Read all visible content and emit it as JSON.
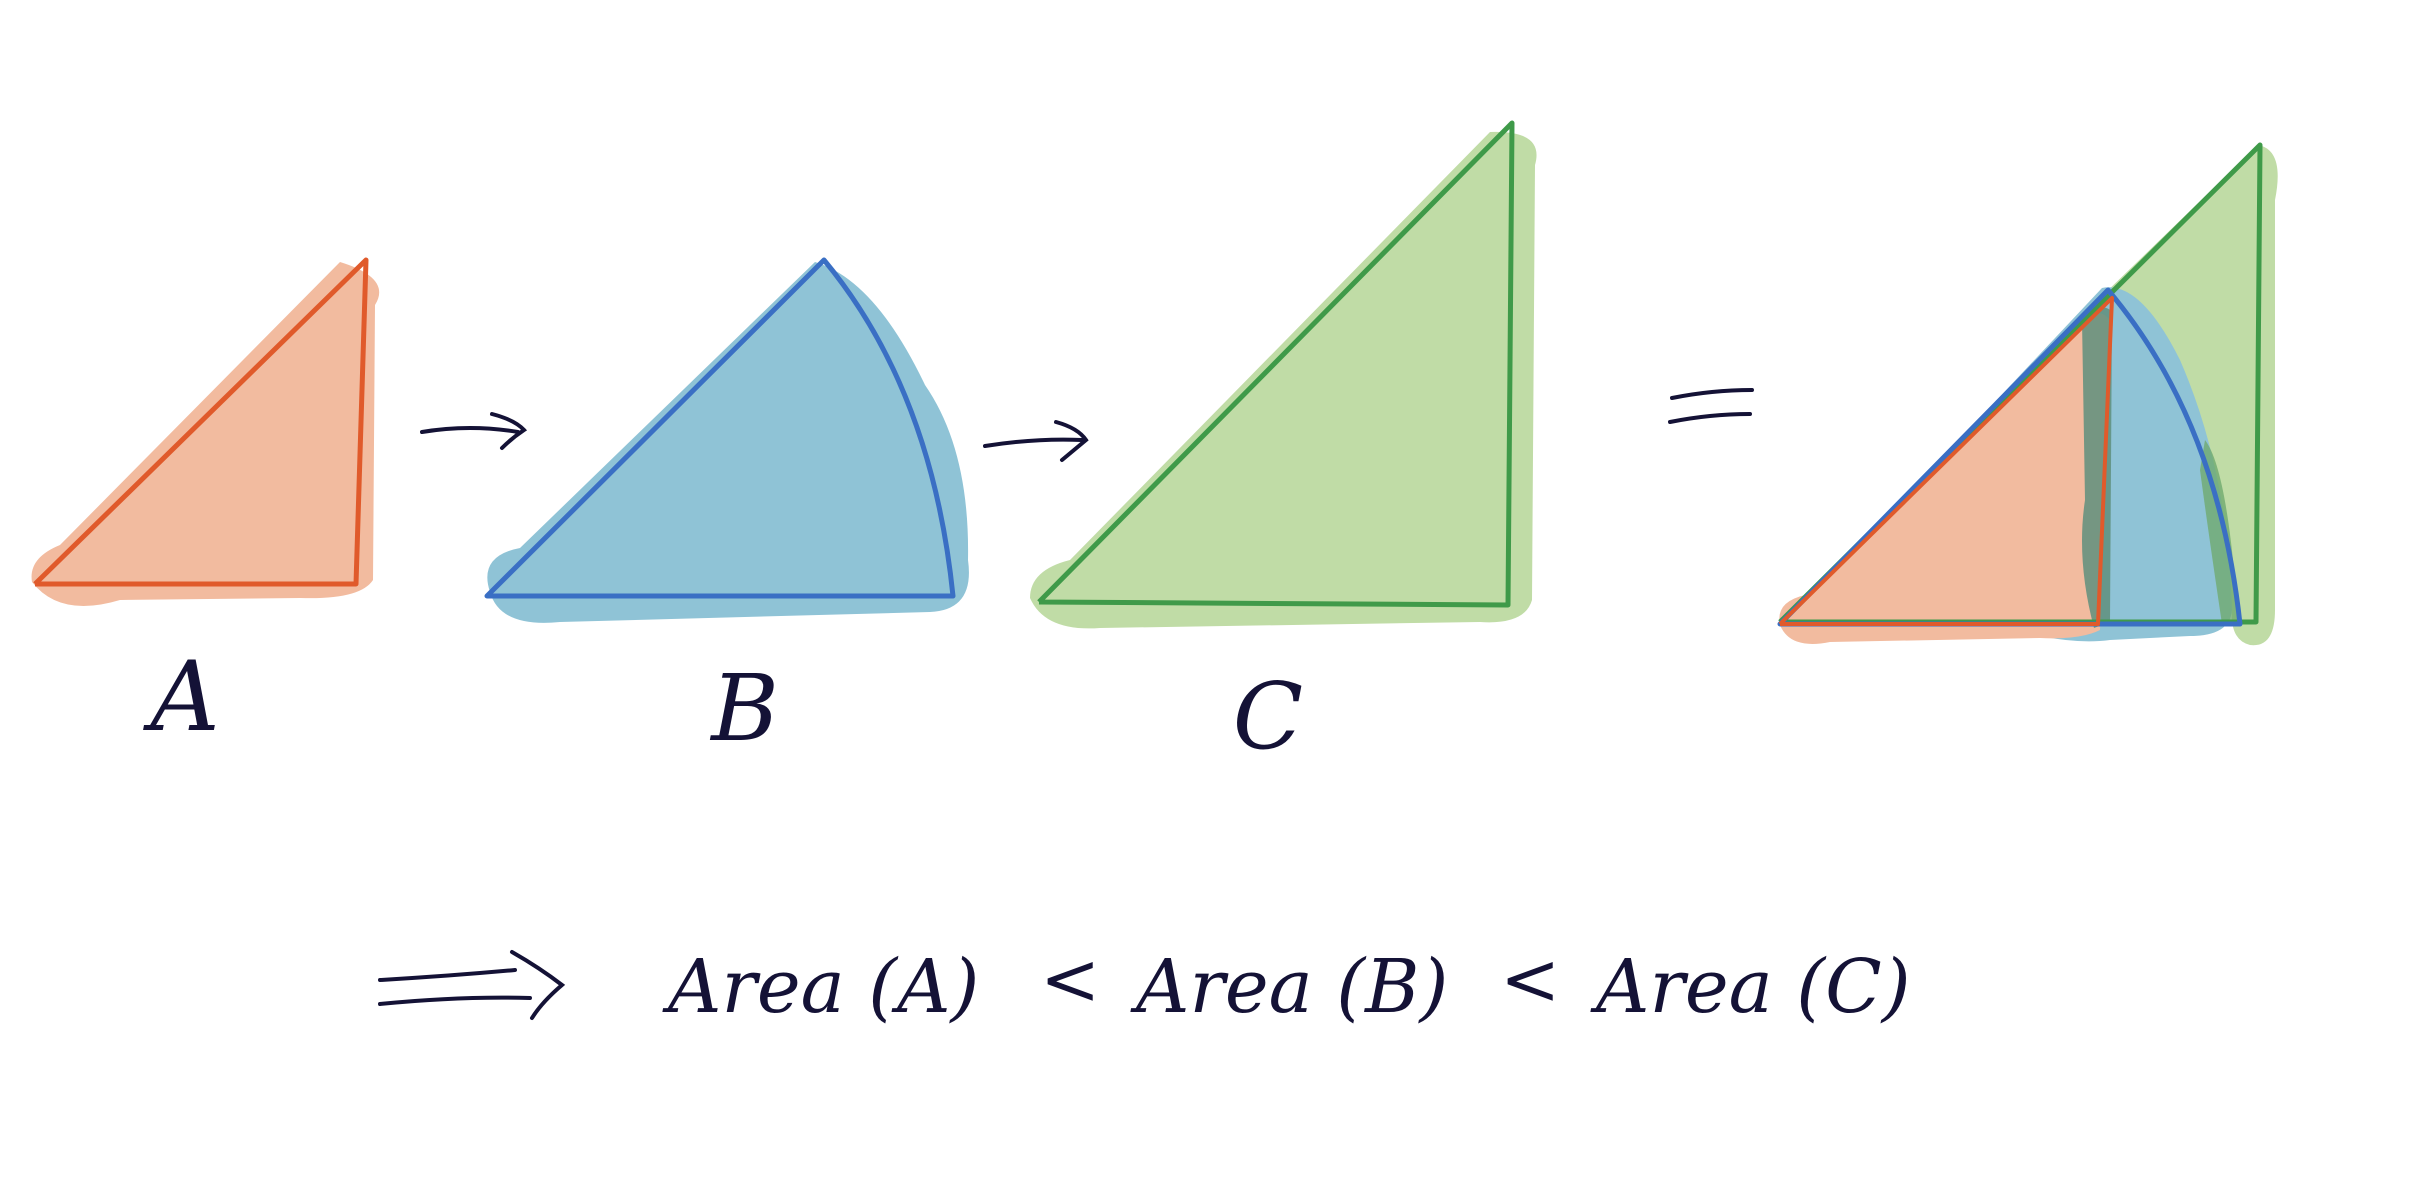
{
  "shapes": {
    "A": {
      "label": "A",
      "fill": "#f2bb9f",
      "stroke": "#e05a2b"
    },
    "B": {
      "label": "B",
      "fill": "#8fc3d6",
      "stroke": "#3a6fc4"
    },
    "C": {
      "label": "C",
      "fill": "#c0dca6",
      "stroke": "#3f9a49"
    }
  },
  "ink": "#141236",
  "equation": {
    "area_a": "Area (A)",
    "lt_1": "<",
    "area_b": "Area (B)",
    "lt_2": "<",
    "area_c": "Area (C)"
  }
}
